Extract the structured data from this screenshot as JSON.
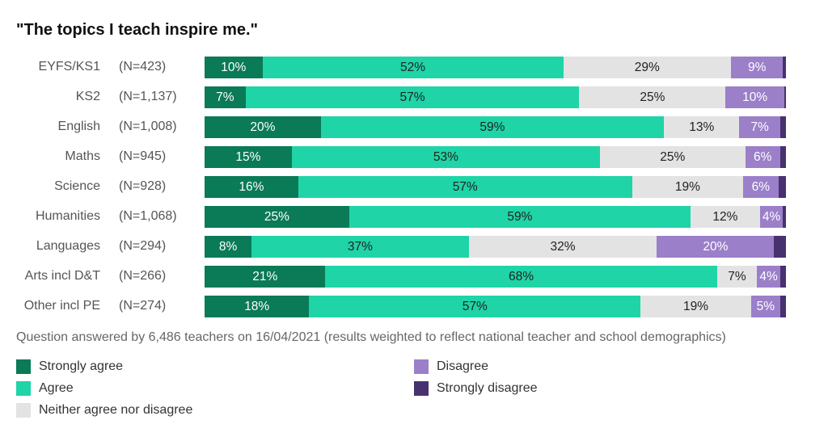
{
  "chart_data": {
    "type": "bar",
    "orientation": "horizontal",
    "stacked": true,
    "title": "\"The topics I teach inspire me.\"",
    "categories": [
      "EYFS/KS1",
      "KS2",
      "English",
      "Maths",
      "Science",
      "Humanities",
      "Languages",
      "Arts incl D&T",
      "Other incl PE"
    ],
    "n_labels": [
      "(N=423)",
      "(N=1,137)",
      "(N=1,008)",
      "(N=945)",
      "(N=928)",
      "(N=1,068)",
      "(N=294)",
      "(N=266)",
      "(N=274)"
    ],
    "series": [
      {
        "name": "Strongly agree",
        "color": "#0a7a57",
        "values": [
          10,
          7,
          20,
          15,
          16,
          25,
          8,
          21,
          18
        ],
        "labels": [
          "10%",
          "7%",
          "20%",
          "15%",
          "16%",
          "25%",
          "8%",
          "21%",
          "18%"
        ]
      },
      {
        "name": "Agree",
        "color": "#1fd4a6",
        "values": [
          52,
          57,
          59,
          53,
          57,
          59,
          37,
          68,
          57
        ],
        "labels": [
          "52%",
          "57%",
          "59%",
          "53%",
          "57%",
          "59%",
          "37%",
          "68%",
          "57%"
        ]
      },
      {
        "name": "Neither agree nor disagree",
        "color": "#e3e3e3",
        "values": [
          29,
          25,
          13,
          25,
          19,
          12,
          32,
          7,
          19
        ],
        "labels": [
          "29%",
          "25%",
          "13%",
          "25%",
          "19%",
          "12%",
          "32%",
          "7%",
          "19%"
        ]
      },
      {
        "name": "Disagree",
        "color": "#9b7fc9",
        "values": [
          9,
          10,
          7,
          6,
          6,
          4,
          20,
          4,
          5
        ],
        "labels": [
          "9%",
          "10%",
          "7%",
          "6%",
          "6%",
          "4%",
          "20%",
          "4%",
          "5%"
        ]
      },
      {
        "name": "Strongly disagree",
        "color": "#47326f",
        "values": [
          0.5,
          0.3,
          1,
          1,
          1.3,
          0.5,
          2,
          1,
          1
        ],
        "labels": [
          "",
          "",
          "",
          "",
          "",
          "",
          "",
          "",
          ""
        ]
      }
    ],
    "xlim": [
      0,
      100
    ],
    "legend_placement": "bottom",
    "note": "Question answered by 6,486 teachers on 16/04/2021 (results weighted to reflect national teacher and school demographics)"
  }
}
